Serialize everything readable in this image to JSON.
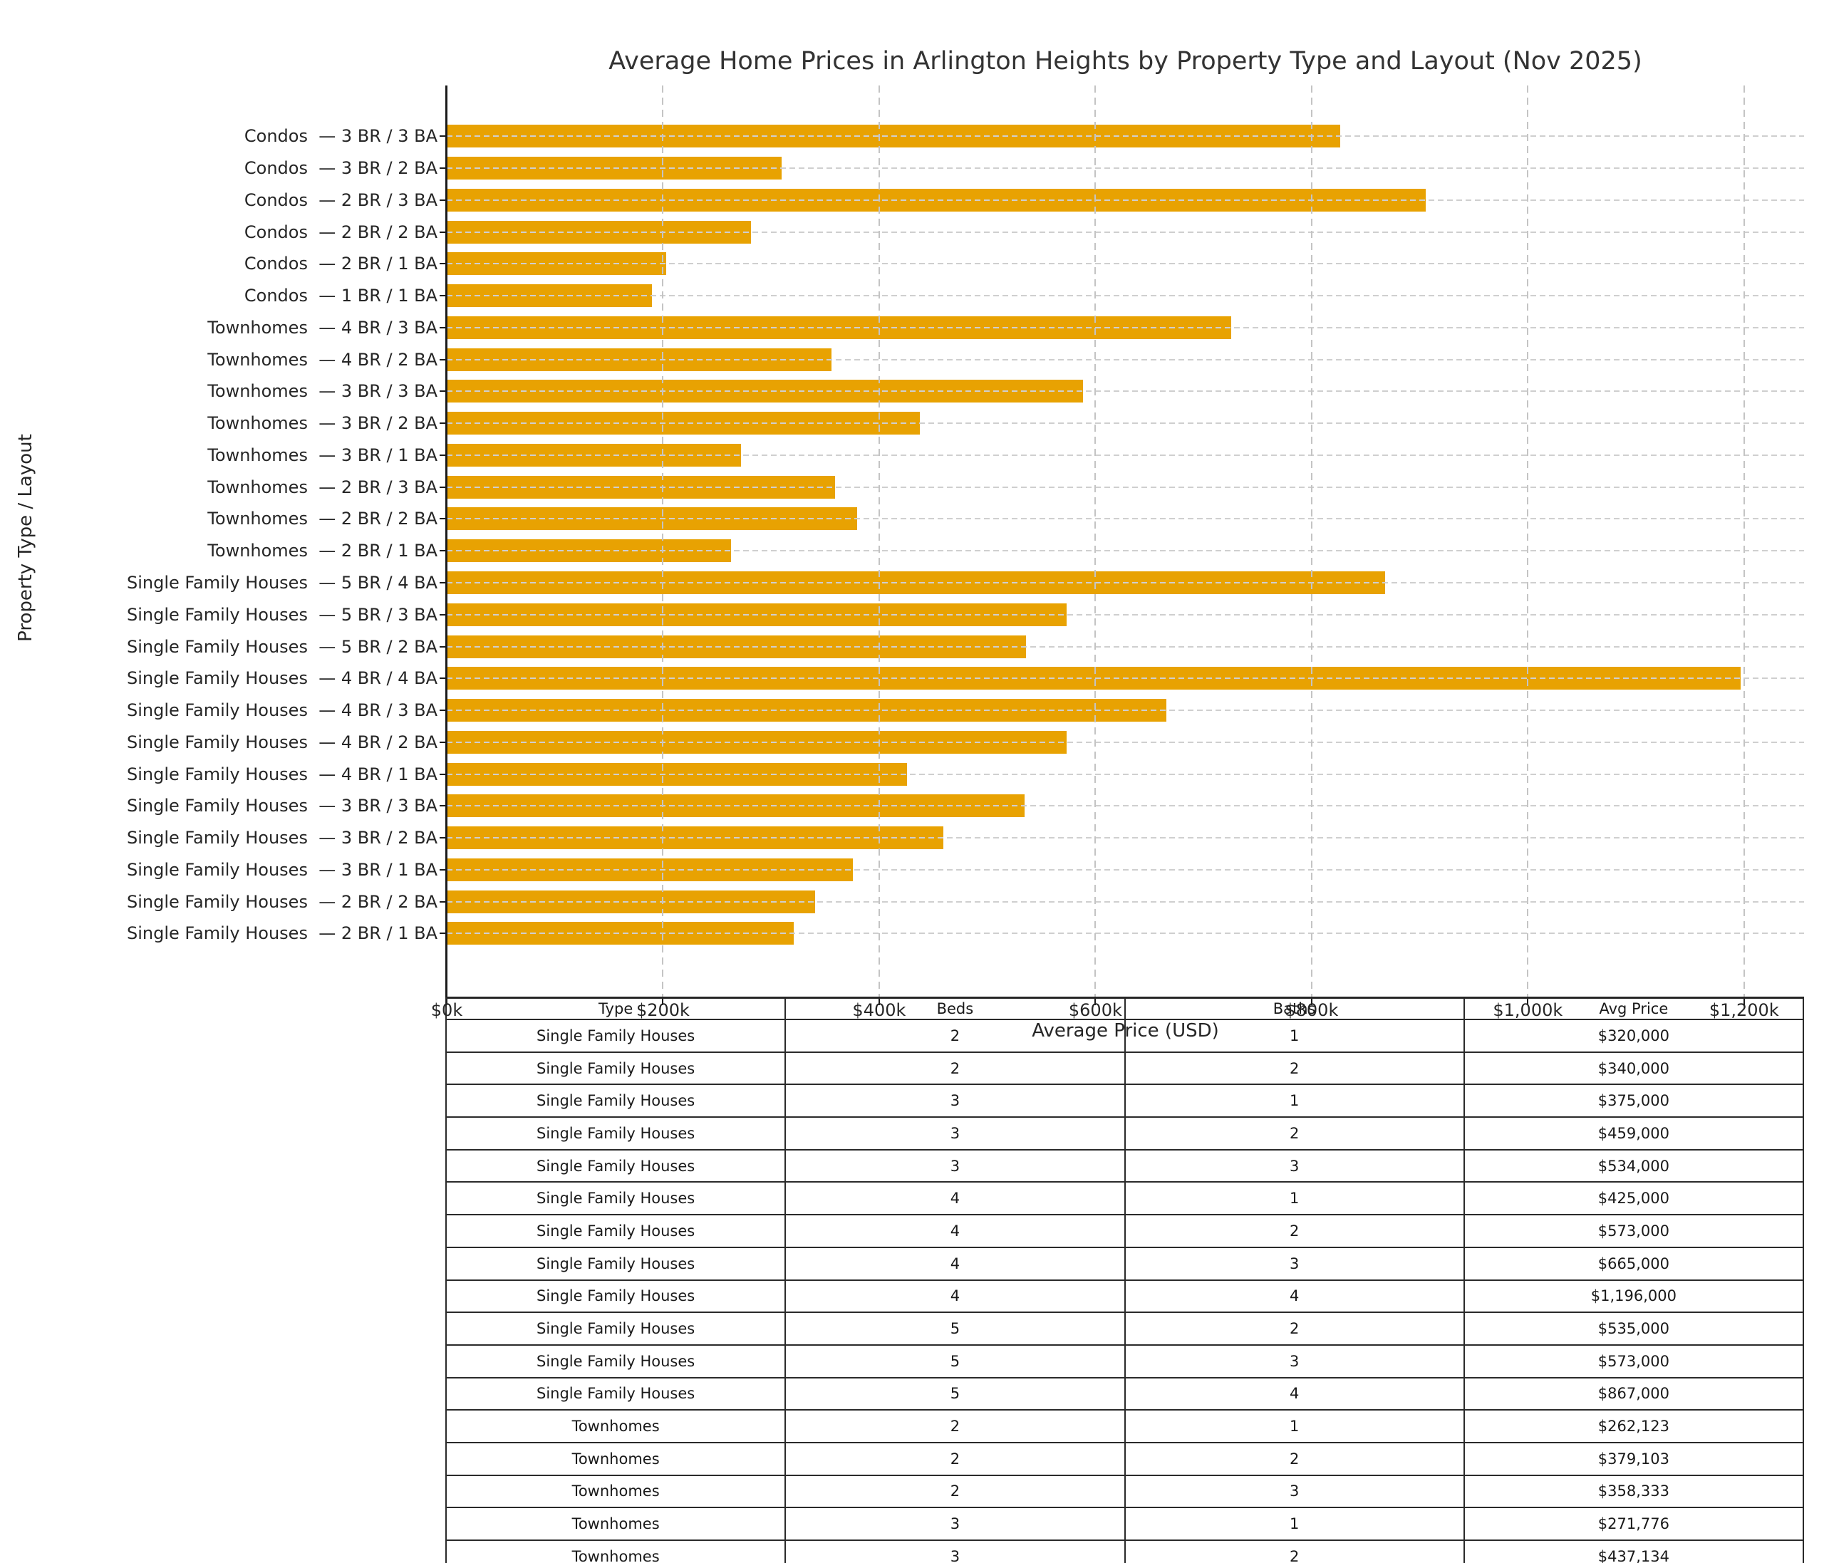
{
  "title": "Average Home Prices in Arlington Heights by Property Type and Layout (Nov 2025)",
  "colors": {
    "bar": "#E8A202",
    "gridline": "#c9c9c9",
    "axis": "#1a1a1a",
    "text": "#262626"
  },
  "chart_data": {
    "type": "bar",
    "orientation": "horizontal",
    "title": "Average Home Prices in Arlington Heights by Property Type and Layout (Nov 2025)",
    "xlabel": "Average Price (USD)",
    "ylabel": "Property Type / Layout",
    "xlim": [
      0,
      1200000
    ],
    "grid": true,
    "x_ticks": [
      {
        "value": 0,
        "label": "$0k"
      },
      {
        "value": 200000,
        "label": "$200k"
      },
      {
        "value": 400000,
        "label": "$400k"
      },
      {
        "value": 600000,
        "label": "$600k"
      },
      {
        "value": 800000,
        "label": "$800k"
      },
      {
        "value": 1000000,
        "label": "$1,000k"
      },
      {
        "value": 1200000,
        "label": "$1,200k"
      }
    ],
    "bars": [
      {
        "label": "Condos  — 3 BR / 3 BA",
        "value": 826000
      },
      {
        "label": "Condos  — 3 BR / 2 BA",
        "value": 309000
      },
      {
        "label": "Condos  — 2 BR / 3 BA",
        "value": 905000
      },
      {
        "label": "Condos  — 2 BR / 2 BA",
        "value": 281000
      },
      {
        "label": "Condos  — 2 BR / 1 BA",
        "value": 202000
      },
      {
        "label": "Condos  — 1 BR / 1 BA",
        "value": 189000
      },
      {
        "label": "Townhomes  — 4 BR / 3 BA",
        "value": 725000
      },
      {
        "label": "Townhomes  — 4 BR / 2 BA",
        "value": 355000
      },
      {
        "label": "Townhomes  — 3 BR / 3 BA",
        "value": 588000
      },
      {
        "label": "Townhomes  — 3 BR / 2 BA",
        "value": 437134
      },
      {
        "label": "Townhomes  — 3 BR / 1 BA",
        "value": 271776
      },
      {
        "label": "Townhomes  — 2 BR / 3 BA",
        "value": 358333
      },
      {
        "label": "Townhomes  — 2 BR / 2 BA",
        "value": 379103
      },
      {
        "label": "Townhomes  — 2 BR / 1 BA",
        "value": 262123
      },
      {
        "label": "Single Family Houses  — 5 BR / 4 BA",
        "value": 867000
      },
      {
        "label": "Single Family Houses  — 5 BR / 3 BA",
        "value": 573000
      },
      {
        "label": "Single Family Houses  — 5 BR / 2 BA",
        "value": 535000
      },
      {
        "label": "Single Family Houses  — 4 BR / 4 BA",
        "value": 1196000
      },
      {
        "label": "Single Family Houses  — 4 BR / 3 BA",
        "value": 665000
      },
      {
        "label": "Single Family Houses  — 4 BR / 2 BA",
        "value": 573000
      },
      {
        "label": "Single Family Houses  — 4 BR / 1 BA",
        "value": 425000
      },
      {
        "label": "Single Family Houses  — 3 BR / 3 BA",
        "value": 534000
      },
      {
        "label": "Single Family Houses  — 3 BR / 2 BA",
        "value": 459000
      },
      {
        "label": "Single Family Houses  — 3 BR / 1 BA",
        "value": 375000
      },
      {
        "label": "Single Family Houses  — 2 BR / 2 BA",
        "value": 340000
      },
      {
        "label": "Single Family Houses  — 2 BR / 1 BA",
        "value": 320000
      }
    ]
  },
  "table": {
    "headers": [
      "Type",
      "Beds",
      "Baths",
      "Avg Price"
    ],
    "rows": [
      [
        "Single Family Houses",
        "2",
        "1",
        "$320,000"
      ],
      [
        "Single Family Houses",
        "2",
        "2",
        "$340,000"
      ],
      [
        "Single Family Houses",
        "3",
        "1",
        "$375,000"
      ],
      [
        "Single Family Houses",
        "3",
        "2",
        "$459,000"
      ],
      [
        "Single Family Houses",
        "3",
        "3",
        "$534,000"
      ],
      [
        "Single Family Houses",
        "4",
        "1",
        "$425,000"
      ],
      [
        "Single Family Houses",
        "4",
        "2",
        "$573,000"
      ],
      [
        "Single Family Houses",
        "4",
        "3",
        "$665,000"
      ],
      [
        "Single Family Houses",
        "4",
        "4",
        "$1,196,000"
      ],
      [
        "Single Family Houses",
        "5",
        "2",
        "$535,000"
      ],
      [
        "Single Family Houses",
        "5",
        "3",
        "$573,000"
      ],
      [
        "Single Family Houses",
        "5",
        "4",
        "$867,000"
      ],
      [
        "Townhomes",
        "2",
        "1",
        "$262,123"
      ],
      [
        "Townhomes",
        "2",
        "2",
        "$379,103"
      ],
      [
        "Townhomes",
        "2",
        "3",
        "$358,333"
      ],
      [
        "Townhomes",
        "3",
        "1",
        "$271,776"
      ],
      [
        "Townhomes",
        "3",
        "2",
        "$437,134"
      ]
    ]
  }
}
